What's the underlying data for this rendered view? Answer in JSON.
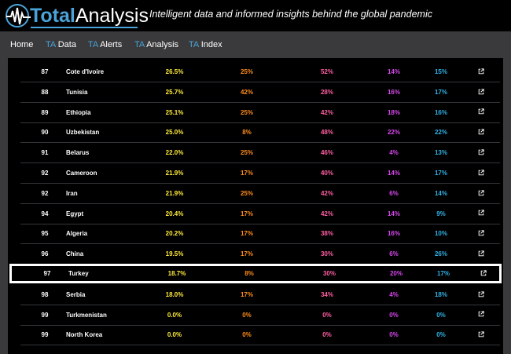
{
  "brand": {
    "name_part1": "Total",
    "name_part2": "Analysis",
    "tagline": "Intelligent data and informed insights behind the global pandemic",
    "accent_color": "#4aa3d8"
  },
  "nav": [
    {
      "prefix": "",
      "label": "Home"
    },
    {
      "prefix": "TA",
      "label": "Data"
    },
    {
      "prefix": "TA",
      "label": "Alerts"
    },
    {
      "prefix": "TA",
      "label": "Analysis"
    },
    {
      "prefix": "TA",
      "label": "Index"
    }
  ],
  "table": {
    "link_icon": "external-link-icon",
    "colors": {
      "v1": "#ffeb3b",
      "v2": "#ff8c1a",
      "v3": "#ff5fa2",
      "v4": "#d946ef",
      "v5": "#2fb3e8"
    },
    "highlighted_country": "Turkey",
    "rows": [
      {
        "rank": "87",
        "country": "Cote d'Ivoire",
        "v1": "26.5%",
        "v2": "25%",
        "v3": "52%",
        "v4": "14%",
        "v5": "15%"
      },
      {
        "rank": "88",
        "country": "Tunisia",
        "v1": "25.7%",
        "v2": "42%",
        "v3": "28%",
        "v4": "16%",
        "v5": "17%"
      },
      {
        "rank": "89",
        "country": "Ethiopia",
        "v1": "25.1%",
        "v2": "25%",
        "v3": "42%",
        "v4": "18%",
        "v5": "16%"
      },
      {
        "rank": "90",
        "country": "Uzbekistan",
        "v1": "25.0%",
        "v2": "8%",
        "v3": "48%",
        "v4": "22%",
        "v5": "22%"
      },
      {
        "rank": "91",
        "country": "Belarus",
        "v1": "22.0%",
        "v2": "25%",
        "v3": "46%",
        "v4": "4%",
        "v5": "13%"
      },
      {
        "rank": "92",
        "country": "Cameroon",
        "v1": "21.9%",
        "v2": "17%",
        "v3": "40%",
        "v4": "14%",
        "v5": "17%"
      },
      {
        "rank": "92",
        "country": "Iran",
        "v1": "21.9%",
        "v2": "25%",
        "v3": "42%",
        "v4": "6%",
        "v5": "14%"
      },
      {
        "rank": "94",
        "country": "Egypt",
        "v1": "20.4%",
        "v2": "17%",
        "v3": "42%",
        "v4": "14%",
        "v5": "9%"
      },
      {
        "rank": "95",
        "country": "Algeria",
        "v1": "20.2%",
        "v2": "17%",
        "v3": "38%",
        "v4": "16%",
        "v5": "10%"
      },
      {
        "rank": "96",
        "country": "China",
        "v1": "19.5%",
        "v2": "17%",
        "v3": "30%",
        "v4": "6%",
        "v5": "26%"
      },
      {
        "rank": "97",
        "country": "Turkey",
        "v1": "18.7%",
        "v2": "8%",
        "v3": "30%",
        "v4": "20%",
        "v5": "17%"
      },
      {
        "rank": "98",
        "country": "Serbia",
        "v1": "18.0%",
        "v2": "17%",
        "v3": "34%",
        "v4": "4%",
        "v5": "18%"
      },
      {
        "rank": "99",
        "country": "Turkmenistan",
        "v1": "0.0%",
        "v2": "0%",
        "v3": "0%",
        "v4": "0%",
        "v5": "0%"
      },
      {
        "rank": "99",
        "country": "North Korea",
        "v1": "0.0%",
        "v2": "0%",
        "v3": "0%",
        "v4": "0%",
        "v5": "0%"
      }
    ]
  }
}
